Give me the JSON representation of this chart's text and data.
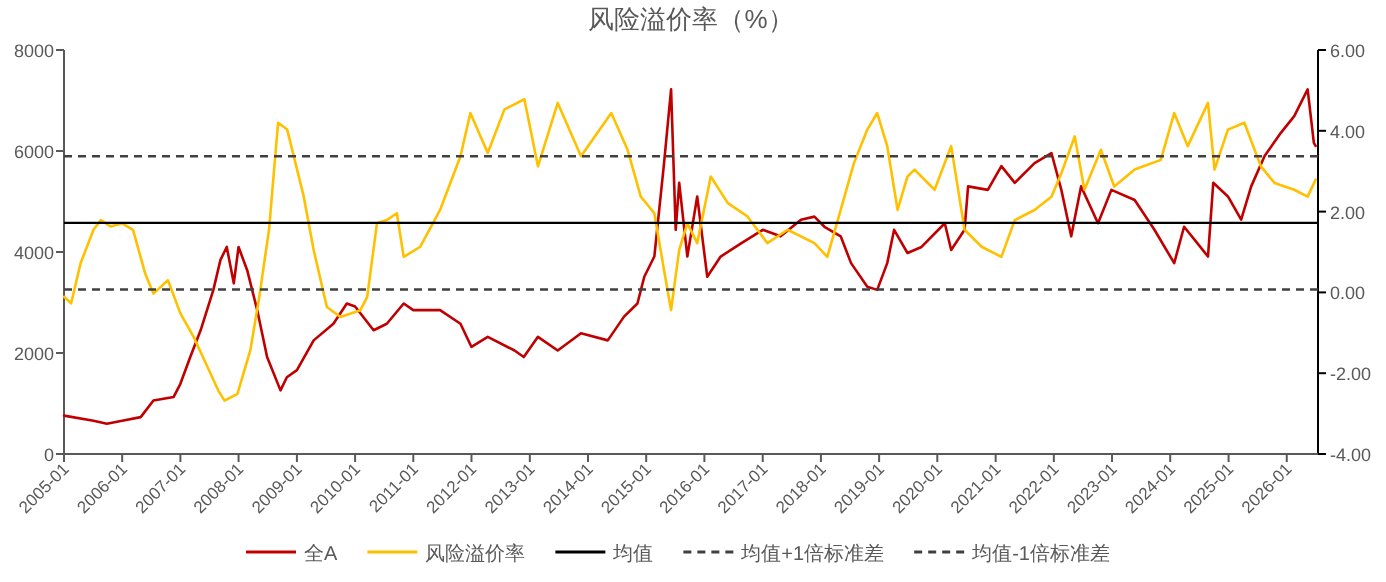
{
  "chart_data": {
    "type": "line",
    "title": "风险溢价率（%）",
    "xlim": [
      "2005-01-01",
      "2026-07-16"
    ],
    "xticks": [
      "2005-01",
      "2006-01",
      "2007-01",
      "2008-01",
      "2009-01",
      "2010-01",
      "2011-01",
      "2012-01",
      "2013-01",
      "2014-01",
      "2015-01",
      "2016-01",
      "2017-01",
      "2018-01",
      "2019-01",
      "2020-01",
      "2021-01",
      "2022-01",
      "2023-01",
      "2024-01",
      "2025-01",
      "2026-01"
    ],
    "ylim": [
      0,
      8000
    ],
    "yticks": [
      0,
      2000,
      4000,
      6000,
      8000
    ],
    "y2lim": [
      -4,
      6
    ],
    "y2ticks": [
      {
        "value": -4,
        "label": "-4.00"
      },
      {
        "value": -2,
        "label": "-2.00"
      },
      {
        "value": 0,
        "label": "0.00"
      },
      {
        "value": 2,
        "label": "2.00"
      },
      {
        "value": 4,
        "label": "4.00"
      },
      {
        "value": 6,
        "label": "6.00"
      }
    ],
    "grid": false,
    "legend": "bottom",
    "series": [
      {
        "name": "全A",
        "color": "#c00000",
        "x": [
          "2005-01-01",
          "2005-07-05",
          "2005-09-27",
          "2006-01-01",
          "2006-04-27",
          "2006-07-16",
          "2006-11-20",
          "2007-01-01",
          "2007-03-04",
          "2007-05-08",
          "2007-07-27",
          "2007-09-09",
          "2007-10-19",
          "2007-12-02",
          "2008-01-01",
          "2008-02-24",
          "2008-04-27",
          "2008-06-28",
          "2008-09-20",
          "2008-10-30",
          "2009-01-01",
          "2009-04-16",
          "2009-08-18",
          "2009-11-10",
          "2010-01-01",
          "2010-04-27",
          "2010-07-19",
          "2010-11-02",
          "2011-01-01",
          "2011-06-18",
          "2011-10-24",
          "2012-01-01",
          "2012-04-12",
          "2012-09-27",
          "2012-11-24",
          "2013-02-21",
          "2013-06-25",
          "2013-11-18",
          "2014-05-05",
          "2014-08-15",
          "2014-11-07",
          "2014-12-20",
          "2015-02-21",
          "2015-04-23",
          "2015-06-06",
          "2015-07-05",
          "2015-07-27",
          "2015-09-16",
          "2015-11-17",
          "2016-01-19",
          "2016-04-12",
          "2016-08-18",
          "2017-01-01",
          "2017-04-23",
          "2017-08-29",
          "2017-11-21",
          "2018-01-23",
          "2018-05-05",
          "2018-07-09",
          "2018-10-19",
          "2018-12-20",
          "2019-02-21",
          "2019-04-05",
          "2019-06-28",
          "2019-09-24",
          "2020-02-17",
          "2020-03-28",
          "2020-06-20",
          "2020-07-12",
          "2020-11-13",
          "2021-02-06",
          "2021-05-01",
          "2021-09-02",
          "2021-12-17",
          "2022-02-17",
          "2022-04-20",
          "2022-06-21",
          "2022-10-05",
          "2022-12-28",
          "2023-05-23",
          "2023-09-24",
          "2024-01-26",
          "2024-03-28",
          "2024-06-20",
          "2024-08-25",
          "2024-09-27",
          "2024-12-28",
          "2025-03-21",
          "2025-05-23",
          "2025-08-15",
          "2025-11-25",
          "2026-02-17",
          "2026-05-12",
          "2026-06-20",
          "2026-07-01"
        ],
        "values": [
          760,
          660,
          600,
          660,
          730,
          1060,
          1130,
          1390,
          1920,
          2450,
          3250,
          3840,
          4100,
          3380,
          4100,
          3640,
          2850,
          1920,
          1260,
          1520,
          1660,
          2250,
          2580,
          2980,
          2920,
          2450,
          2580,
          2980,
          2850,
          2850,
          2580,
          2120,
          2320,
          2050,
          1920,
          2320,
          2050,
          2390,
          2250,
          2720,
          2980,
          3510,
          3910,
          5760,
          7220,
          4440,
          5370,
          3910,
          5100,
          3510,
          3910,
          4170,
          4440,
          4310,
          4640,
          4700,
          4500,
          4310,
          3780,
          3310,
          3250,
          3780,
          4440,
          3980,
          4100,
          4570,
          4040,
          4440,
          5300,
          5230,
          5700,
          5370,
          5760,
          5960,
          5230,
          4310,
          5300,
          4570,
          5230,
          5030,
          4440,
          3780,
          4500,
          4170,
          3910,
          5370,
          5100,
          4640,
          5300,
          5900,
          6360,
          6690,
          7220,
          6160,
          6100
        ]
      },
      {
        "name": "风险溢价率",
        "color": "#ffc000",
        "axis": "y2",
        "x": [
          "2005-01-01",
          "2005-02-15",
          "2005-04-15",
          "2005-07-05",
          "2005-08-20",
          "2005-10-20",
          "2006-01-01",
          "2006-03-10",
          "2006-05-25",
          "2006-07-16",
          "2006-10-15",
          "2007-01-01",
          "2007-03-25",
          "2007-06-10",
          "2007-08-27",
          "2007-10-05",
          "2007-12-25",
          "2008-03-15",
          "2008-05-10",
          "2008-07-10",
          "2008-09-05",
          "2008-11-01",
          "2009-02-13",
          "2009-04-16",
          "2009-07-08",
          "2009-10-01",
          "2010-02-03",
          "2010-03-18",
          "2010-05-18",
          "2010-07-19",
          "2010-09-20",
          "2010-11-02",
          "2011-02-14",
          "2011-06-18",
          "2011-10-24",
          "2011-12-25",
          "2012-04-12",
          "2012-07-26",
          "2012-11-28",
          "2013-02-21",
          "2013-06-25",
          "2013-11-18",
          "2014-05-27",
          "2014-09-06",
          "2014-11-28",
          "2015-02-21",
          "2015-04-23",
          "2015-06-06",
          "2015-07-27",
          "2015-09-16",
          "2015-11-17",
          "2016-02-10",
          "2016-05-27",
          "2016-09-27",
          "2017-01-30",
          "2017-06-06",
          "2017-11-21",
          "2018-02-10",
          "2018-05-05",
          "2018-07-27",
          "2018-10-19",
          "2018-12-20",
          "2019-02-21",
          "2019-04-27",
          "2019-06-28",
          "2019-08-11",
          "2019-12-15",
          "2020-03-28",
          "2020-06-20",
          "2020-10-05",
          "2021-02-06",
          "2021-05-01",
          "2021-09-02",
          "2021-12-17",
          "2022-02-17",
          "2022-05-12",
          "2022-07-12",
          "2022-10-23",
          "2023-01-15",
          "2023-05-23",
          "2023-11-03",
          "2024-01-26",
          "2024-04-20",
          "2024-08-25",
          "2024-10-05",
          "2024-12-28",
          "2025-04-10",
          "2025-07-23",
          "2025-10-16",
          "2026-02-17",
          "2026-05-12",
          "2026-07-01"
        ],
        "values": [
          -0.11,
          -0.27,
          0.72,
          1.55,
          1.79,
          1.63,
          1.71,
          1.55,
          0.47,
          -0.03,
          0.3,
          -0.52,
          -1.1,
          -1.76,
          -2.43,
          -2.68,
          -2.51,
          -1.43,
          -0.11,
          1.55,
          4.2,
          4.03,
          2.37,
          1.05,
          -0.36,
          -0.61,
          -0.44,
          -0.11,
          1.71,
          1.79,
          1.96,
          0.88,
          1.13,
          2.04,
          3.37,
          4.44,
          3.45,
          4.53,
          4.78,
          3.12,
          4.69,
          3.37,
          4.44,
          3.53,
          2.37,
          1.96,
          0.55,
          -0.44,
          1.05,
          1.71,
          1.22,
          2.87,
          2.21,
          1.88,
          1.22,
          1.55,
          1.22,
          0.88,
          2.04,
          3.2,
          4.03,
          4.44,
          3.62,
          2.04,
          2.87,
          3.04,
          2.54,
          3.62,
          1.55,
          1.13,
          0.88,
          1.79,
          2.04,
          2.37,
          2.95,
          3.86,
          2.54,
          3.53,
          2.62,
          3.04,
          3.28,
          4.44,
          3.62,
          4.69,
          3.04,
          4.03,
          4.2,
          3.12,
          2.71,
          2.54,
          2.37,
          2.79
        ]
      }
    ],
    "ref_lines": [
      {
        "axis": "y2",
        "value": 1.72,
        "label": "均值",
        "color": "#000000",
        "line_style": "solid"
      },
      {
        "axis": "y2",
        "value": 3.37,
        "label": "均值+1倍标准差",
        "color": "#404040",
        "line_style": "dashed"
      },
      {
        "axis": "y2",
        "value": 0.07,
        "label": "均值-1倍标准差",
        "color": "#404040",
        "line_style": "dashed"
      }
    ]
  }
}
